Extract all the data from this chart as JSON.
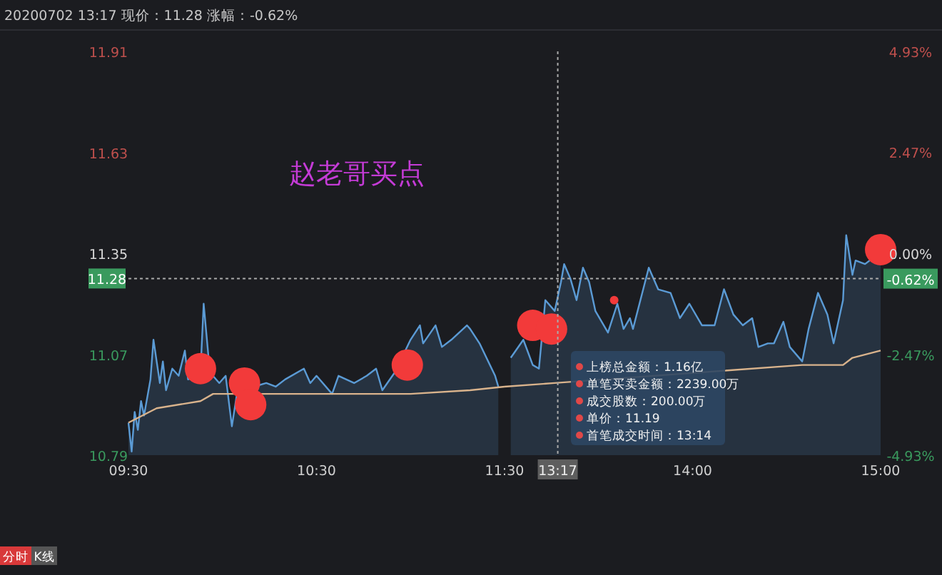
{
  "chart_data": [
    {
      "type": "line",
      "title": "20200702 13:17 现价：11.28 涨幅：-0.62%",
      "annotations": [
        "赵老哥买点",
        "分时",
        "K线"
      ],
      "xlim": [
        9.5,
        11.5
      ],
      "xticks": [
        {
          "value": 9.5,
          "label": "09:30"
        },
        {
          "value": 10.5,
          "label": "10:30"
        },
        {
          "value": 11.5,
          "label": "11:30"
        }
      ],
      "ylim": [
        10.79,
        11.91
      ],
      "yticks": [
        10.79,
        11.07,
        11.35,
        11.63,
        11.91
      ],
      "ref_lines": [
        {
          "axis": "y",
          "value": 11.28,
          "label": "11.28",
          "color": "#aaaaaa",
          "line_style": "dotted"
        }
      ],
      "series": [
        {
          "type": "area",
          "color": "#5b9bd5",
          "x": [
            9.5,
            9.517,
            9.533,
            9.55,
            9.567,
            9.583,
            9.617,
            9.633,
            9.667,
            9.683,
            9.7,
            9.733,
            9.767,
            9.8,
            9.817,
            9.883,
            9.9,
            9.933,
            9.983,
            10.017,
            10.05,
            10.083,
            10.167,
            10.233,
            10.283,
            10.333,
            10.433,
            10.467,
            10.5,
            10.583,
            10.617,
            10.7,
            10.767,
            10.817,
            10.85,
            10.917,
            11,
            11.05,
            11.067,
            11.133,
            11.167,
            11.217,
            11.3,
            11.317,
            11.367,
            11.45,
            11.467
          ],
          "values": [
            10.88,
            10.8,
            10.91,
            10.86,
            10.94,
            10.9,
            11.0,
            11.11,
            10.99,
            11.05,
            10.97,
            11.03,
            11.01,
            11.08,
            11.0,
            11.02,
            11.21,
            11.02,
            10.99,
            11.01,
            10.87,
            10.98,
            10.98,
            10.99,
            10.98,
            11.0,
            11.03,
            10.99,
            11.01,
            10.96,
            11.01,
            10.99,
            11.01,
            11.03,
            10.97,
            11.02,
            11.11,
            11.15,
            11.1,
            11.15,
            11.09,
            11.11,
            11.15,
            11.14,
            11.1,
            11.01,
            10.98
          ]
        },
        {
          "color": "#d9b38c",
          "x": [
            9.5,
            9.65,
            9.883,
            9.95,
            10.333,
            11,
            11.317,
            11.5
          ],
          "values": [
            10.88,
            10.92,
            10.94,
            10.96,
            10.96,
            10.96,
            10.97,
            10.98
          ]
        },
        {
          "type": "bubble",
          "color": "#f23a3a",
          "x": [
            9.883,
            10.117,
            10.15,
            10.983
          ],
          "values": [
            11.03,
            10.99,
            10.93,
            11.04
          ],
          "sizes": [
            1,
            1,
            1,
            1
          ]
        }
      ]
    },
    {
      "type": "line",
      "annotations": [
        "上榜总金额：1.16亿",
        "单笔买卖金额：2239.00万",
        "成交股数：200.00万",
        "单价：11.19",
        "首笔成交时间：13:14"
      ],
      "xlim": [
        13,
        15
      ],
      "xticks": [
        {
          "value": 14,
          "label": "14:00"
        },
        {
          "value": 15,
          "label": "15:00"
        }
      ],
      "ylim": [
        10.79,
        11.91
      ],
      "y2lim": [
        -4.93,
        4.93
      ],
      "y2ticks": [
        {
          "value": -4.93,
          "label": "-4.93%"
        },
        {
          "value": -2.47,
          "label": "-2.47%"
        },
        {
          "value": 0,
          "label": "0.00%"
        },
        {
          "value": 2.47,
          "label": "2.47%"
        },
        {
          "value": 4.93,
          "label": "4.93%"
        }
      ],
      "ref_lines": [
        {
          "axis": "y2",
          "value": -0.62,
          "label": "-0.62%",
          "color": "#aaaaaa",
          "line_style": "dotted"
        },
        {
          "axis": "x",
          "value": 13.283,
          "label": "13:17",
          "color": "#aaaaaa",
          "line_style": "dotted"
        }
      ],
      "series": [
        {
          "type": "area",
          "color": "#5b9bd5",
          "x": [
            13.033,
            13.1,
            13.15,
            13.183,
            13.217,
            13.267,
            13.3,
            13.317,
            13.35,
            13.383,
            13.417,
            13.45,
            13.483,
            13.55,
            13.6,
            13.633,
            13.667,
            13.683,
            13.767,
            13.817,
            13.883,
            13.933,
            13.983,
            14.05,
            14.117,
            14.167,
            14.217,
            14.267,
            14.317,
            14.35,
            14.4,
            14.433,
            14.483,
            14.517,
            14.583,
            14.617,
            14.667,
            14.717,
            14.75,
            14.8,
            14.817,
            14.85,
            14.867,
            14.917,
            14.967,
            15
          ],
          "values": [
            11.06,
            11.11,
            11.04,
            11.03,
            11.22,
            11.19,
            11.27,
            11.32,
            11.28,
            11.22,
            11.31,
            11.27,
            11.19,
            11.13,
            11.21,
            11.14,
            11.17,
            11.14,
            11.31,
            11.25,
            11.24,
            11.17,
            11.21,
            11.15,
            11.15,
            11.25,
            11.18,
            11.15,
            11.17,
            11.09,
            11.1,
            11.1,
            11.16,
            11.09,
            11.05,
            11.14,
            11.24,
            11.18,
            11.1,
            11.22,
            11.4,
            11.29,
            11.33,
            11.32,
            11.34,
            11.34
          ]
        },
        {
          "color": "#d9b38c",
          "x": [
            13,
            13.267,
            14.583,
            14.8,
            14.85,
            15
          ],
          "values": [
            10.98,
            10.99,
            11.04,
            11.04,
            11.06,
            11.08
          ]
        },
        {
          "type": "bubble",
          "color": "#f23a3a",
          "x": [
            13.15,
            13.25,
            15
          ],
          "values": [
            11.15,
            11.14,
            11.36
          ],
          "sizes": [
            1,
            1,
            1
          ]
        },
        {
          "type": "scatter",
          "color": "#f23a3a",
          "x": [
            13.583
          ],
          "values": [
            11.22
          ]
        }
      ]
    }
  ]
}
